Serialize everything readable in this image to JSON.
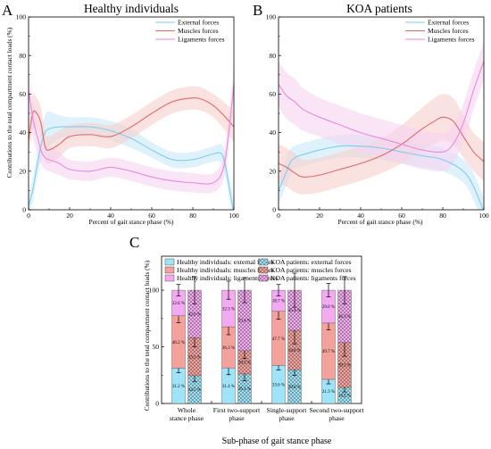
{
  "colors": {
    "external": "#7ccdf0",
    "muscles": "#e0696a",
    "ligaments": "#ea88db",
    "external_band": "#c9eaf8",
    "muscles_band": "#f6cfcd",
    "ligaments_band": "#f7d4f1",
    "bar_external": "#9ee3f8",
    "bar_muscles": "#f5a19b",
    "bar_ligaments": "#f4aaf0"
  },
  "chart_data": [
    {
      "panel": "A",
      "type": "line",
      "title": "Healthy individuals",
      "xlabel": "Percent of gait stance phase (%)",
      "ylabel": "Contributions to the total compartment contact loads (%)",
      "xlim": [
        0,
        100
      ],
      "ylim": [
        0,
        100
      ],
      "xticks": [
        "0",
        "20",
        "40",
        "60",
        "80",
        "100"
      ],
      "yticks": [
        "0",
        "20",
        "40",
        "60",
        "80",
        "100"
      ],
      "legend": "top-right",
      "series": [
        {
          "name": "External forces",
          "key": "external",
          "points": [
            [
              0,
              2
            ],
            [
              2,
              10
            ],
            [
              4,
              22
            ],
            [
              6,
              33
            ],
            [
              8,
              40
            ],
            [
              10,
              42
            ],
            [
              15,
              43
            ],
            [
              20,
              43
            ],
            [
              30,
              43
            ],
            [
              40,
              41
            ],
            [
              50,
              37
            ],
            [
              60,
              31
            ],
            [
              70,
              26
            ],
            [
              80,
              26
            ],
            [
              90,
              29
            ],
            [
              94,
              29
            ],
            [
              96,
              22
            ],
            [
              98,
              10
            ],
            [
              100,
              -2
            ]
          ],
          "band": [
            [
              0,
              6
            ],
            [
              2,
              6
            ],
            [
              4,
              6
            ],
            [
              6,
              8
            ],
            [
              8,
              9
            ],
            [
              10,
              9
            ],
            [
              15,
              6
            ],
            [
              20,
              5
            ],
            [
              30,
              5
            ],
            [
              40,
              5
            ],
            [
              50,
              5
            ],
            [
              60,
              4
            ],
            [
              70,
              4
            ],
            [
              80,
              4
            ],
            [
              90,
              4
            ],
            [
              94,
              5
            ],
            [
              96,
              6
            ],
            [
              98,
              6
            ],
            [
              100,
              6
            ]
          ]
        },
        {
          "name": "Muscles forces",
          "key": "muscles",
          "points": [
            [
              0,
              36
            ],
            [
              2,
              50
            ],
            [
              4,
              50
            ],
            [
              6,
              45
            ],
            [
              8,
              33
            ],
            [
              10,
              31
            ],
            [
              15,
              34
            ],
            [
              20,
              38
            ],
            [
              30,
              39
            ],
            [
              40,
              38
            ],
            [
              50,
              43
            ],
            [
              60,
              50
            ],
            [
              70,
              56
            ],
            [
              80,
              58
            ],
            [
              85,
              57
            ],
            [
              90,
              54
            ],
            [
              95,
              49
            ],
            [
              100,
              43
            ]
          ],
          "band": [
            [
              0,
              9
            ],
            [
              2,
              9
            ],
            [
              4,
              8
            ],
            [
              6,
              8
            ],
            [
              8,
              7
            ],
            [
              10,
              7
            ],
            [
              15,
              7
            ],
            [
              20,
              6
            ],
            [
              30,
              6
            ],
            [
              40,
              6
            ],
            [
              50,
              6
            ],
            [
              60,
              6
            ],
            [
              70,
              6
            ],
            [
              80,
              6
            ],
            [
              85,
              6
            ],
            [
              90,
              6
            ],
            [
              95,
              7
            ],
            [
              100,
              8
            ]
          ]
        },
        {
          "name": "Ligaments forces",
          "key": "ligaments",
          "points": [
            [
              0,
              62
            ],
            [
              2,
              48
            ],
            [
              4,
              39
            ],
            [
              6,
              31
            ],
            [
              8,
              27
            ],
            [
              10,
              26
            ],
            [
              15,
              24
            ],
            [
              20,
              21
            ],
            [
              30,
              20
            ],
            [
              40,
              22
            ],
            [
              50,
              20
            ],
            [
              60,
              17
            ],
            [
              70,
              15
            ],
            [
              80,
              14
            ],
            [
              90,
              14
            ],
            [
              95,
              22
            ],
            [
              98,
              45
            ],
            [
              100,
              65
            ]
          ],
          "band": [
            [
              0,
              10
            ],
            [
              2,
              10
            ],
            [
              4,
              9
            ],
            [
              6,
              7
            ],
            [
              8,
              6
            ],
            [
              10,
              6
            ],
            [
              15,
              6
            ],
            [
              20,
              5
            ],
            [
              30,
              5
            ],
            [
              40,
              5
            ],
            [
              50,
              5
            ],
            [
              60,
              5
            ],
            [
              70,
              5
            ],
            [
              80,
              5
            ],
            [
              90,
              5
            ],
            [
              95,
              6
            ],
            [
              98,
              8
            ],
            [
              100,
              8
            ]
          ]
        }
      ]
    },
    {
      "panel": "B",
      "type": "line",
      "title": "KOA patients",
      "xlabel": "Percent of gait stance phase (%)",
      "xlim": [
        0,
        100
      ],
      "ylim": [
        0,
        100
      ],
      "xticks": [
        "0",
        "20",
        "40",
        "60",
        "80",
        "100"
      ],
      "yticks": [
        "0",
        "20",
        "40",
        "60",
        "80",
        "100"
      ],
      "legend": "top-right",
      "series": [
        {
          "name": "External forces",
          "key": "external",
          "points": [
            [
              0,
              10
            ],
            [
              2,
              15
            ],
            [
              4,
              20
            ],
            [
              6,
              25
            ],
            [
              8,
              27
            ],
            [
              10,
              28
            ],
            [
              20,
              31
            ],
            [
              30,
              33
            ],
            [
              40,
              33
            ],
            [
              50,
              32
            ],
            [
              60,
              30
            ],
            [
              70,
              28
            ],
            [
              80,
              26
            ],
            [
              90,
              20
            ],
            [
              95,
              12
            ],
            [
              100,
              -1
            ]
          ],
          "band": [
            [
              0,
              7
            ],
            [
              2,
              7
            ],
            [
              4,
              7
            ],
            [
              6,
              7
            ],
            [
              8,
              6
            ],
            [
              10,
              6
            ],
            [
              20,
              6
            ],
            [
              30,
              6
            ],
            [
              40,
              6
            ],
            [
              50,
              6
            ],
            [
              60,
              6
            ],
            [
              70,
              6
            ],
            [
              80,
              6
            ],
            [
              90,
              6
            ],
            [
              95,
              7
            ],
            [
              100,
              7
            ]
          ]
        },
        {
          "name": "Muscles forces",
          "key": "muscles",
          "points": [
            [
              0,
              24
            ],
            [
              4,
              22
            ],
            [
              8,
              19
            ],
            [
              12,
              17
            ],
            [
              20,
              18
            ],
            [
              30,
              21
            ],
            [
              40,
              24
            ],
            [
              50,
              28
            ],
            [
              60,
              34
            ],
            [
              70,
              42
            ],
            [
              76,
              46
            ],
            [
              80,
              48
            ],
            [
              85,
              46
            ],
            [
              90,
              38
            ],
            [
              95,
              30
            ],
            [
              100,
              25
            ]
          ],
          "band": [
            [
              0,
              10
            ],
            [
              4,
              10
            ],
            [
              8,
              10
            ],
            [
              12,
              9
            ],
            [
              20,
              9
            ],
            [
              30,
              9
            ],
            [
              40,
              9
            ],
            [
              50,
              9
            ],
            [
              60,
              10
            ],
            [
              70,
              11
            ],
            [
              76,
              12
            ],
            [
              80,
              12
            ],
            [
              85,
              12
            ],
            [
              90,
              11
            ],
            [
              95,
              10
            ],
            [
              100,
              10
            ]
          ]
        },
        {
          "name": "Ligaments forces",
          "key": "ligaments",
          "points": [
            [
              0,
              65
            ],
            [
              4,
              59
            ],
            [
              8,
              56
            ],
            [
              12,
              52
            ],
            [
              20,
              48
            ],
            [
              30,
              44
            ],
            [
              40,
              40
            ],
            [
              50,
              37
            ],
            [
              60,
              34
            ],
            [
              70,
              31
            ],
            [
              80,
              30
            ],
            [
              85,
              34
            ],
            [
              90,
              45
            ],
            [
              95,
              62
            ],
            [
              100,
              77
            ]
          ],
          "band": [
            [
              0,
              12
            ],
            [
              4,
              12
            ],
            [
              8,
              12
            ],
            [
              12,
              11
            ],
            [
              20,
              10
            ],
            [
              30,
              10
            ],
            [
              40,
              10
            ],
            [
              50,
              10
            ],
            [
              60,
              10
            ],
            [
              70,
              10
            ],
            [
              80,
              10
            ],
            [
              85,
              10
            ],
            [
              90,
              10
            ],
            [
              95,
              10
            ],
            [
              100,
              10
            ]
          ]
        }
      ]
    },
    {
      "panel": "C",
      "type": "bar",
      "stacked": true,
      "ylabel": "Contributions to the total compartment contact loads (%)",
      "xlabel": "Sub-phase of gait stance phase",
      "ylim": [
        0,
        130
      ],
      "yticks": [
        "0",
        "50",
        "100"
      ],
      "legend": "top",
      "categories": [
        "Whole\nstance phase",
        "First two-support\nphase",
        "Single-support\nphase",
        "Second two-support\nphase"
      ],
      "series": [
        {
          "name": "Healthy individuals: external forces",
          "key": "external",
          "group": "healthy",
          "values": [
            31.2,
            31.4,
            33.6,
            21.3
          ],
          "labels": [
            "31.2 %",
            "31.4 %",
            "33.6 %",
            "21.3 %"
          ],
          "err": [
            4,
            6,
            4,
            4
          ]
        },
        {
          "name": "Healthy individuals: muscles forces",
          "key": "muscles",
          "group": "healthy",
          "values": [
            46.2,
            36.3,
            47.7,
            49.7
          ],
          "labels": [
            "46.2 %",
            "36.3 %",
            "47.7 %",
            "49.7 %"
          ],
          "err": [
            6,
            7,
            7,
            6
          ]
        },
        {
          "name": "Healthy individuals: ligaments forces",
          "key": "ligaments",
          "group": "healthy",
          "values": [
            22.6,
            32.3,
            18.7,
            29.0
          ],
          "labels": [
            "22.6 %",
            "32.3 %",
            "18.7 %",
            "29.0 %"
          ],
          "err": [
            5,
            8,
            5,
            6
          ]
        },
        {
          "name": "KOA patients: external forces",
          "key": "external",
          "group": "koa",
          "values": [
            24.5,
            26.1,
            29.8,
            14.2
          ],
          "labels": [
            "24.5 %",
            "26.1 %",
            "29.8 %",
            "14.2 %"
          ],
          "err": [
            5,
            6,
            5,
            4
          ]
        },
        {
          "name": "KOA patients: muscles forces",
          "key": "muscles",
          "group": "koa",
          "values": [
            33.5,
            20.5,
            34.8,
            39.5
          ],
          "labels": [
            "33.5 %",
            "20.5 %",
            "34.8 %",
            "39.5 %"
          ],
          "err": [
            8,
            7,
            12,
            12
          ]
        },
        {
          "name": "KOA patients: ligaments forces",
          "key": "ligaments",
          "group": "koa",
          "values": [
            42.0,
            53.4,
            35.4,
            46.3
          ],
          "labels": [
            "42.0 %",
            "53.4 %",
            "35.4 %",
            "46.3 %"
          ],
          "err": [
            12,
            11,
            15,
            12
          ]
        }
      ]
    }
  ]
}
